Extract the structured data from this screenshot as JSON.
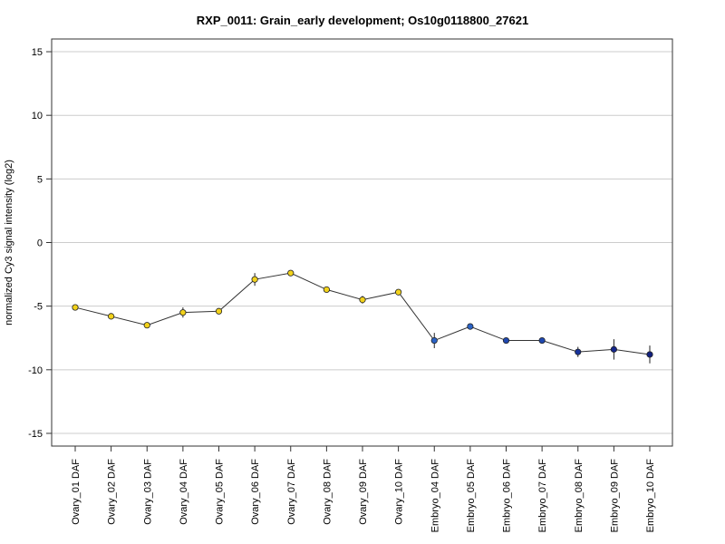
{
  "chart_data": {
    "type": "line",
    "title": "RXP_0011: Grain_early development; Os10g0118800_27621",
    "xlabel": "",
    "ylabel": "normalized Cy3 signal intensity (log2)",
    "ylim": [
      -16,
      16
    ],
    "yticks": [
      -15,
      -10,
      -5,
      0,
      5,
      10,
      15
    ],
    "grid": "horizontal",
    "categories": [
      "Ovary_01 DAF",
      "Ovary_02 DAF",
      "Ovary_03 DAF",
      "Ovary_04 DAF",
      "Ovary_05 DAF",
      "Ovary_06 DAF",
      "Ovary_07 DAF",
      "Ovary_08 DAF",
      "Ovary_09 DAF",
      "Ovary_10 DAF",
      "Embryo_04 DAF",
      "Embryo_05 DAF",
      "Embryo_06 DAF",
      "Embryo_07 DAF",
      "Embryo_08 DAF",
      "Embryo_09 DAF",
      "Embryo_10 DAF"
    ],
    "values": [
      -5.1,
      -5.8,
      -6.5,
      -5.5,
      -5.4,
      -2.9,
      -2.4,
      -3.7,
      -4.5,
      -3.9,
      -7.7,
      -6.6,
      -7.7,
      -7.7,
      -8.6,
      -8.4,
      -8.8
    ],
    "errors": [
      0.2,
      0.2,
      0.2,
      0.4,
      0.2,
      0.5,
      0.2,
      0.2,
      0.3,
      0.2,
      0.6,
      0.2,
      0.15,
      0.15,
      0.4,
      0.8,
      0.7
    ],
    "point_colors": [
      "#f2d21b",
      "#f2d21b",
      "#f2d21b",
      "#f2d21b",
      "#f2d21b",
      "#f2d21b",
      "#f2d21b",
      "#f2d21b",
      "#f2d21b",
      "#f2d21b",
      "#2b63c6",
      "#2b63c6",
      "#1f48b0",
      "#1f48b0",
      "#18339c",
      "#14268c",
      "#11207f"
    ],
    "line_color": "#333333"
  }
}
